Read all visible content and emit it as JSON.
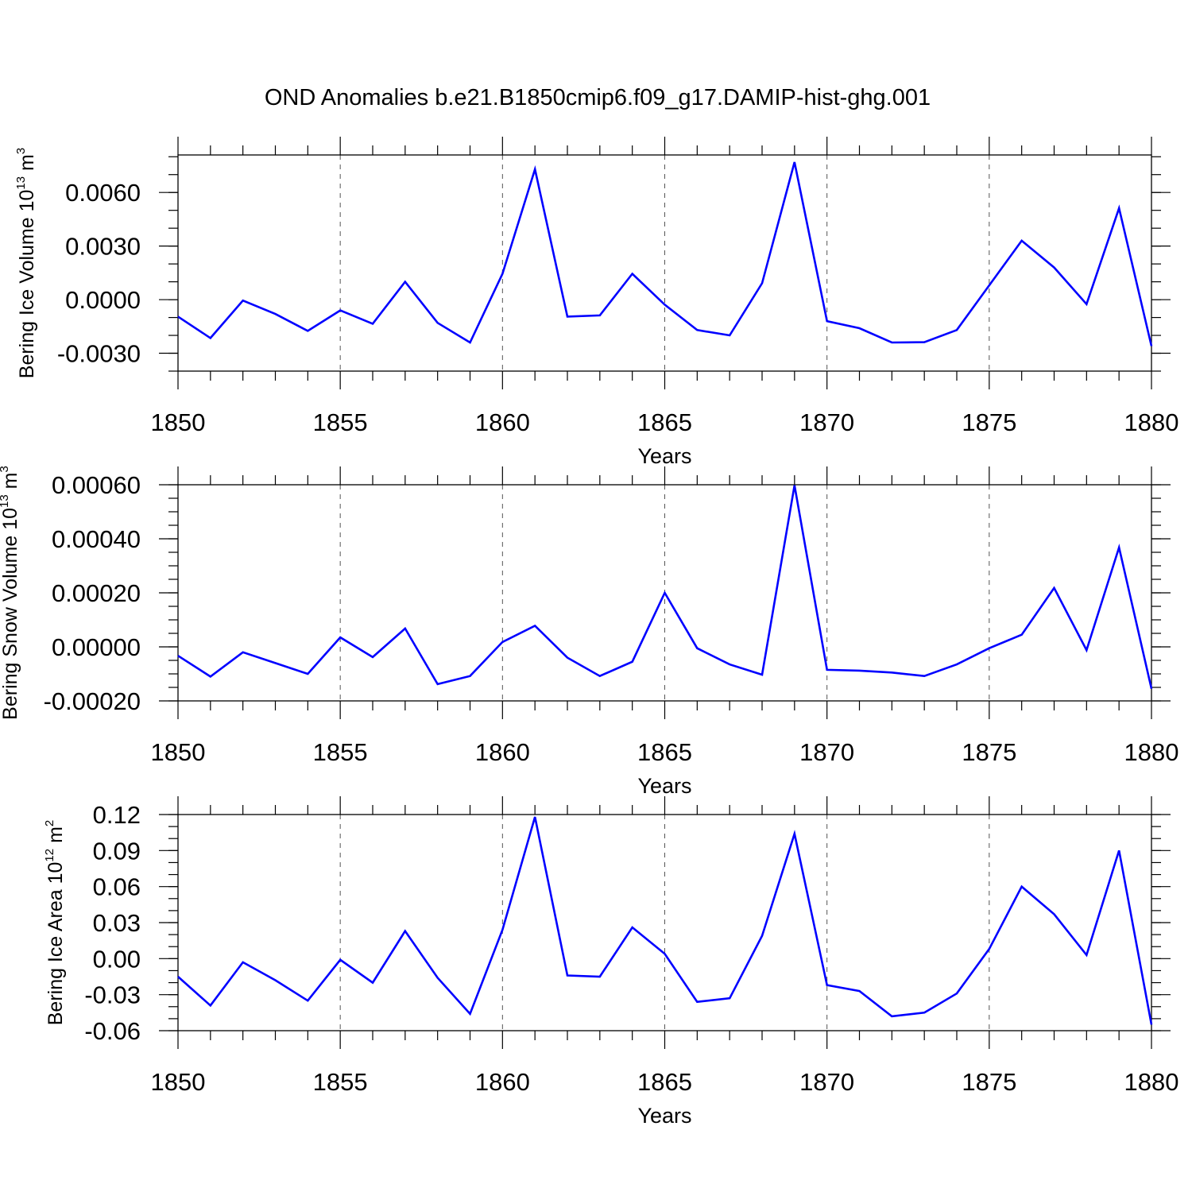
{
  "page_title": "OND Anomalies b.e21.B1850cmip6.f09_g17.DAMIP-hist-ghg.001",
  "colors": {
    "line": "#0000ff",
    "axis": "#000000",
    "grid": "#555555"
  },
  "chart_data": [
    {
      "type": "line",
      "title": "OND Anomalies b.e21.B1850cmip6.f09_g17.DAMIP-hist-ghg.001",
      "xlabel": "Years",
      "ylabel": {
        "text": "Bering Ice Volume 10",
        "exponent": "13",
        "unit": "m",
        "unit_exponent": "3"
      },
      "xlim": [
        1850,
        1880
      ],
      "ylim": [
        -0.004,
        0.0081
      ],
      "x_ticks": [
        "1850",
        "1855",
        "1860",
        "1865",
        "1870",
        "1875",
        "1880"
      ],
      "y_ticks": [
        {
          "value": -0.003,
          "label": "-0.0030"
        },
        {
          "value": 0.0,
          "label": "0.0000"
        },
        {
          "value": 0.003,
          "label": "0.0030"
        },
        {
          "value": 0.006,
          "label": "0.0060"
        }
      ],
      "y_minor_step": 0.001,
      "grid": "vertical dashed at major x ticks",
      "series": [
        {
          "name": "Bering Ice Volume",
          "x": [
            1850,
            1851,
            1852,
            1853,
            1854,
            1855,
            1856,
            1857,
            1858,
            1859,
            1860,
            1861,
            1862,
            1863,
            1864,
            1865,
            1866,
            1867,
            1868,
            1869,
            1870,
            1871,
            1872,
            1873,
            1874,
            1875,
            1876,
            1877,
            1878,
            1879,
            1880
          ],
          "values": [
            -0.00095,
            -0.00215,
            -5e-05,
            -0.0008,
            -0.00175,
            -0.0006,
            -0.00135,
            0.001,
            -0.0013,
            -0.0024,
            0.00145,
            0.0073,
            -0.00095,
            -0.00088,
            0.00145,
            -0.00028,
            -0.0017,
            -0.002,
            0.00092,
            0.0077,
            -0.0012,
            -0.0016,
            -0.0024,
            -0.00238,
            -0.0017,
            0.0008,
            0.0033,
            0.0018,
            -0.00025,
            0.00512,
            -0.0026
          ]
        }
      ]
    },
    {
      "type": "line",
      "xlabel": "Years",
      "ylabel": {
        "text": "Bering Snow Volume 10",
        "exponent": "13",
        "unit": "m",
        "unit_exponent": "3"
      },
      "xlim": [
        1850,
        1880
      ],
      "ylim": [
        -0.0002,
        0.0006
      ],
      "x_ticks": [
        "1850",
        "1855",
        "1860",
        "1865",
        "1870",
        "1875",
        "1880"
      ],
      "y_ticks": [
        {
          "value": -0.0002,
          "label": "-0.00020"
        },
        {
          "value": 0.0,
          "label": "0.00000"
        },
        {
          "value": 0.0002,
          "label": "0.00020"
        },
        {
          "value": 0.0004,
          "label": "0.00040"
        },
        {
          "value": 0.0006,
          "label": "0.00060"
        }
      ],
      "y_minor_step": 5e-05,
      "grid": "vertical dashed at major x ticks",
      "series": [
        {
          "name": "Bering Snow Volume",
          "x": [
            1850,
            1851,
            1852,
            1853,
            1854,
            1855,
            1856,
            1857,
            1858,
            1859,
            1860,
            1861,
            1862,
            1863,
            1864,
            1865,
            1866,
            1867,
            1868,
            1869,
            1870,
            1871,
            1872,
            1873,
            1874,
            1875,
            1876,
            1877,
            1878,
            1879,
            1880
          ],
          "values": [
            -3.3e-05,
            -0.00011,
            -2e-05,
            -6e-05,
            -0.0001,
            3.5e-05,
            -3.8e-05,
            6.8e-05,
            -0.000138,
            -0.000108,
            1.8e-05,
            7.8e-05,
            -4e-05,
            -0.000108,
            -5.5e-05,
            0.0002,
            -5e-06,
            -6.5e-05,
            -0.000103,
            0.000598,
            -8.5e-05,
            -8.8e-05,
            -9.5e-05,
            -0.000108,
            -6.5e-05,
            -5e-06,
            4.5e-05,
            0.000218,
            -1.2e-05,
            0.000368,
            -0.000155
          ]
        }
      ]
    },
    {
      "type": "line",
      "xlabel": "Years",
      "ylabel": {
        "text": "Bering Ice Area 10",
        "exponent": "12",
        "unit": "m",
        "unit_exponent": "2"
      },
      "xlim": [
        1850,
        1880
      ],
      "ylim": [
        -0.06,
        0.12
      ],
      "x_ticks": [
        "1850",
        "1855",
        "1860",
        "1865",
        "1870",
        "1875",
        "1880"
      ],
      "y_ticks": [
        {
          "value": -0.06,
          "label": "-0.06"
        },
        {
          "value": -0.03,
          "label": "-0.03"
        },
        {
          "value": 0.0,
          "label": "0.00"
        },
        {
          "value": 0.03,
          "label": "0.03"
        },
        {
          "value": 0.06,
          "label": "0.06"
        },
        {
          "value": 0.09,
          "label": "0.09"
        },
        {
          "value": 0.12,
          "label": "0.12"
        }
      ],
      "y_minor_step": 0.01,
      "grid": "vertical dashed at major x ticks",
      "series": [
        {
          "name": "Bering Ice Area",
          "x": [
            1850,
            1851,
            1852,
            1853,
            1854,
            1855,
            1856,
            1857,
            1858,
            1859,
            1860,
            1861,
            1862,
            1863,
            1864,
            1865,
            1866,
            1867,
            1868,
            1869,
            1870,
            1871,
            1872,
            1873,
            1874,
            1875,
            1876,
            1877,
            1878,
            1879,
            1880
          ],
          "values": [
            -0.015,
            -0.039,
            -0.003,
            -0.018,
            -0.035,
            -0.001,
            -0.02,
            0.023,
            -0.016,
            -0.046,
            0.024,
            0.118,
            -0.014,
            -0.015,
            0.026,
            0.004,
            -0.036,
            -0.033,
            0.019,
            0.104,
            -0.022,
            -0.027,
            -0.048,
            -0.045,
            -0.029,
            0.008,
            0.06,
            0.037,
            0.003,
            0.09,
            -0.055
          ]
        }
      ]
    }
  ]
}
